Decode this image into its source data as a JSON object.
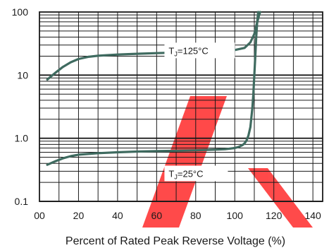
{
  "chart_data": {
    "type": "line",
    "xlabel": "Percent of Rated  Peak Reverse Voltage (%)",
    "ylabel": "",
    "x_scale": "linear",
    "y_scale": "log",
    "xlim": [
      0,
      145
    ],
    "ylim": [
      0.1,
      100
    ],
    "x_ticks": [
      "00",
      "20",
      "40",
      "60",
      "80",
      "100",
      "120",
      "140"
    ],
    "y_ticks": [
      "0.1",
      "1.0",
      "10",
      "100"
    ],
    "grid": true,
    "series": [
      {
        "annotation": {
          "prefix": "T",
          "subscript": "J",
          "suffix": "=125°C"
        },
        "color": "#3f6b60",
        "x": [
          4,
          8,
          12,
          16,
          20,
          25,
          30,
          40,
          50,
          60,
          70,
          80,
          90,
          100,
          105,
          108,
          110,
          111,
          111.8,
          112.5,
          113
        ],
        "y": [
          8.5,
          10.8,
          13.5,
          16.0,
          18.0,
          19.5,
          20.3,
          21.2,
          21.8,
          22.3,
          22.8,
          23.3,
          24.0,
          25.0,
          27.0,
          33.0,
          45.0,
          60.0,
          75.0,
          90.0,
          100.0
        ]
      },
      {
        "annotation": {
          "prefix": "T",
          "subscript": "J",
          "suffix": "=25°C"
        },
        "color": "#3f6b60",
        "x": [
          4,
          8,
          12,
          16,
          20,
          30,
          40,
          50,
          60,
          70,
          80,
          90,
          95,
          100,
          102,
          104,
          105,
          106,
          107,
          108,
          109,
          109.5,
          110,
          110.5,
          111,
          111.5,
          112
        ],
        "y": [
          0.38,
          0.43,
          0.48,
          0.52,
          0.55,
          0.58,
          0.6,
          0.615,
          0.625,
          0.635,
          0.645,
          0.66,
          0.67,
          0.7,
          0.73,
          0.78,
          0.83,
          0.92,
          1.1,
          1.5,
          3.0,
          5.0,
          10.0,
          20.0,
          40.0,
          70.0,
          100.0
        ]
      }
    ],
    "colors": {
      "curve": "#3f6b60",
      "grid": "#1a1a1a",
      "watermark": "#ff1a1a"
    }
  }
}
